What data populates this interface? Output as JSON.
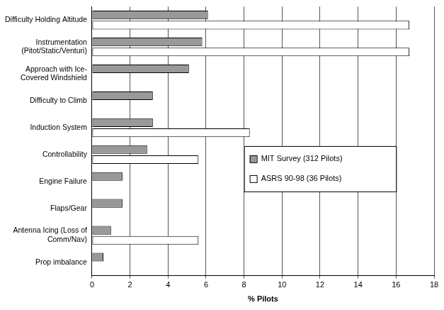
{
  "chart_data": {
    "type": "bar",
    "orientation": "horizontal",
    "x_label": "% Pilots",
    "categories": [
      "Difficulty Holding Altitude",
      "Instrumentation (Pitot/Static/Venturi)",
      "Approach with Ice-Covered Windshield",
      "Difficulty to Climb",
      "Induction System",
      "Controllability",
      "Engine Failure",
      "Flaps/Gear",
      "Antenna Icing (Loss of Comm/Nav)",
      "Prop imbalance"
    ],
    "series": [
      {
        "name": "MIT Survey (312 Pilots)",
        "color": "#999999",
        "values": [
          6.1,
          5.8,
          5.1,
          3.2,
          3.2,
          2.9,
          1.6,
          1.6,
          1.0,
          0.6
        ]
      },
      {
        "name": "ASRS 90-98 (36 Pilots)",
        "color": "#ffffff",
        "values": [
          16.7,
          16.7,
          null,
          null,
          8.3,
          5.6,
          null,
          null,
          5.6,
          null
        ]
      }
    ],
    "xlim": [
      0,
      18
    ],
    "xticks": [
      0,
      2,
      4,
      6,
      8,
      10,
      12,
      14,
      16,
      18
    ],
    "grid": true,
    "legend": "right"
  }
}
